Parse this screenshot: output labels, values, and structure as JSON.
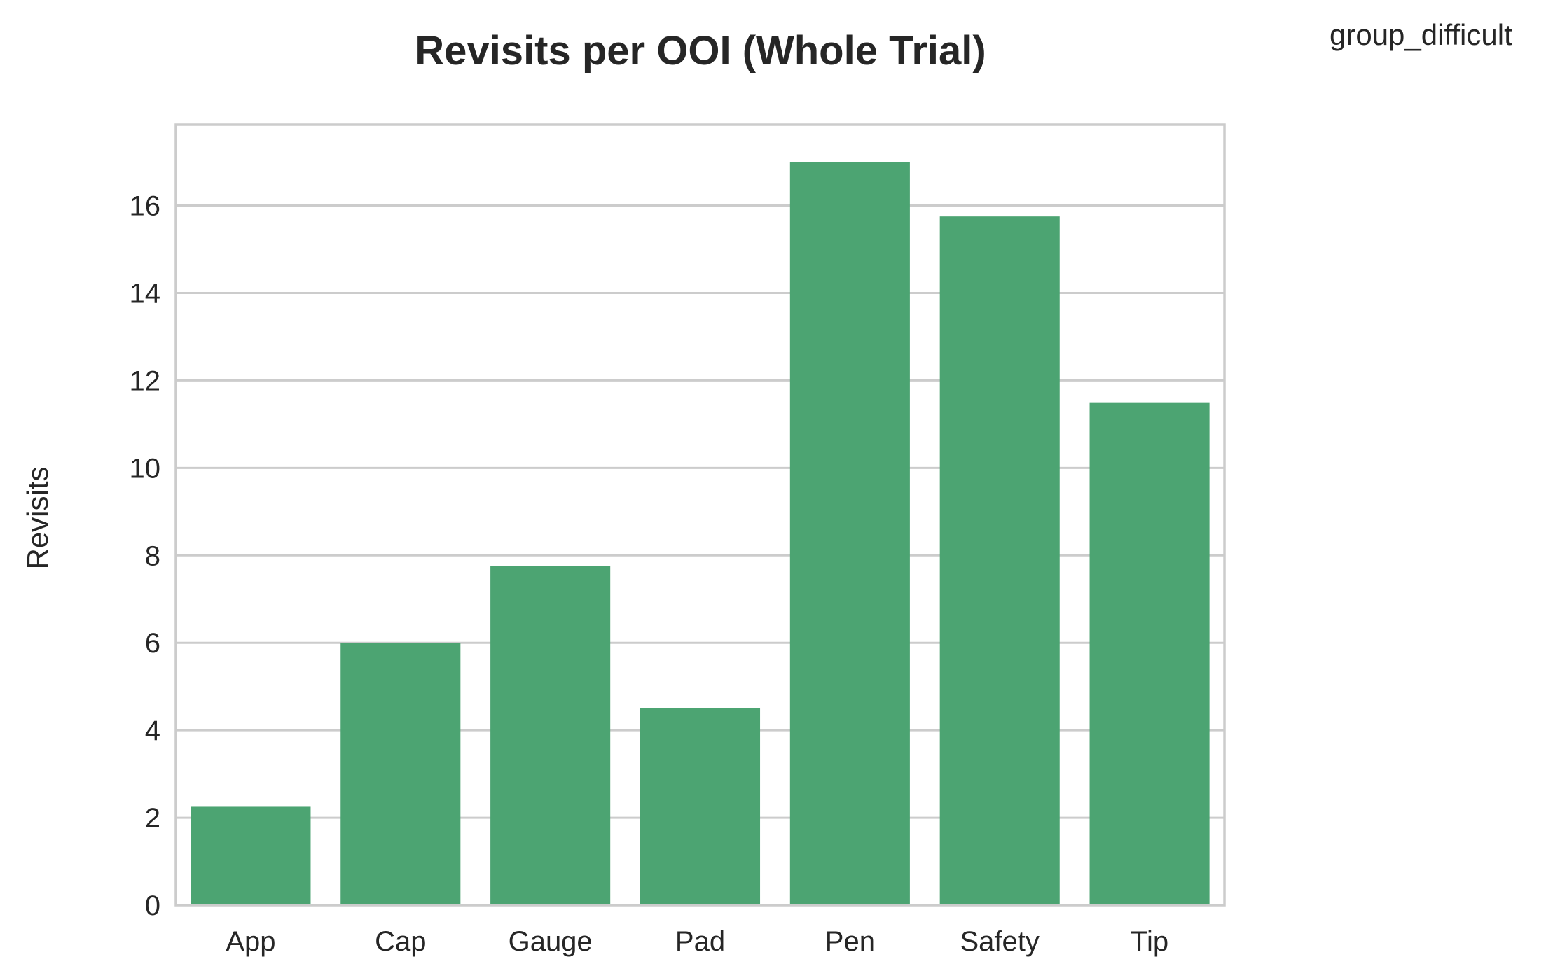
{
  "chart_data": {
    "type": "bar",
    "title": "Revisits per OOI (Whole Trial)",
    "corner_label": "group_difficult",
    "xlabel": "",
    "ylabel": "Revisits",
    "categories": [
      "App",
      "Cap",
      "Gauge",
      "Pad",
      "Pen",
      "Safety",
      "Tip"
    ],
    "values": [
      2.25,
      6.0,
      7.75,
      4.5,
      17.0,
      15.75,
      11.5
    ],
    "ylim": [
      0,
      17.85
    ],
    "yticks": [
      0,
      2,
      4,
      6,
      8,
      10,
      12,
      14,
      16
    ],
    "grid": "horizontal",
    "bar_color": "#4ca472",
    "grid_color": "#cccccc",
    "frame_color": "#cccccc"
  }
}
